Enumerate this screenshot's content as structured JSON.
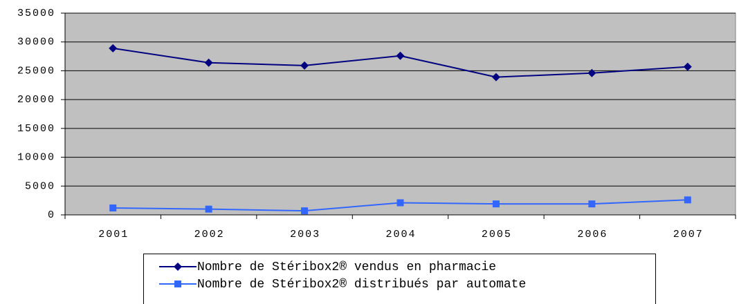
{
  "chart_data": {
    "type": "line",
    "categories": [
      "2001",
      "2002",
      "2003",
      "2004",
      "2005",
      "2006",
      "2007"
    ],
    "series": [
      {
        "name": "Nombre de Stéribox2® vendus en pharmacie",
        "color": "#000080",
        "marker": "diamond",
        "values": [
          28900,
          26400,
          25900,
          27600,
          23900,
          24600,
          25700
        ]
      },
      {
        "name": "Nombre de Stéribox2® distribués par automate",
        "color": "#3366ff",
        "marker": "square",
        "values": [
          1200,
          1000,
          700,
          2100,
          1900,
          1900,
          2600
        ]
      }
    ],
    "ylim": [
      0,
      35000
    ],
    "yticks": [
      0,
      5000,
      10000,
      15000,
      20000,
      25000,
      30000,
      35000
    ],
    "grid": true,
    "plot_background": "#c0c0c0",
    "legend": "bottom"
  }
}
